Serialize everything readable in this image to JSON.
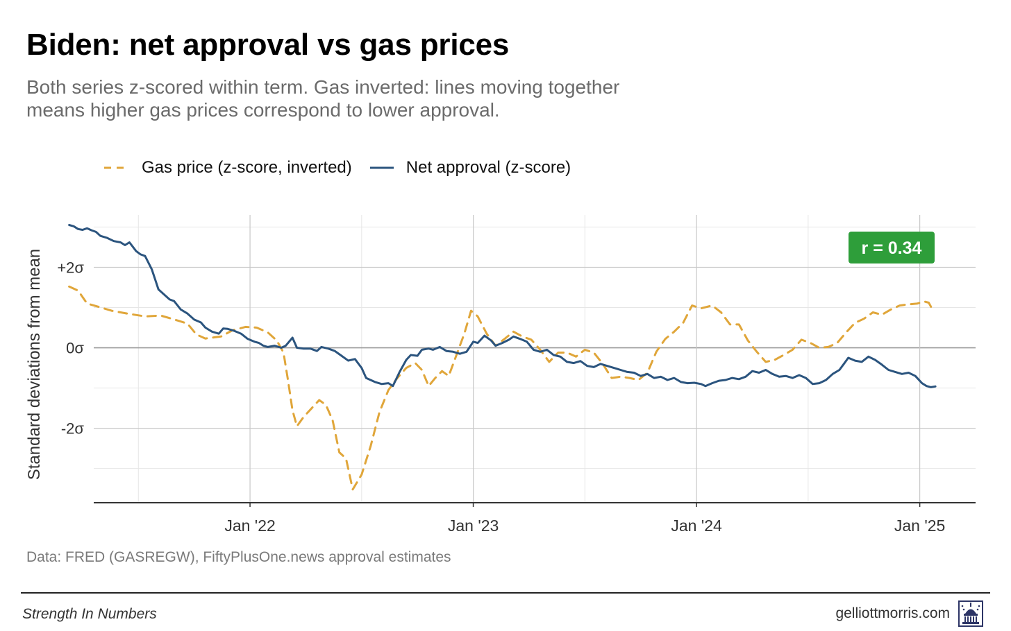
{
  "title": "Biden: net approval vs gas prices",
  "subtitle": "Both series z-scored within term. Gas inverted: lines moving together means higher gas prices correspond to lower approval.",
  "legend": {
    "gas": "Gas price (z-score, inverted)",
    "approval": "Net approval (z-score)"
  },
  "source": "Data: FRED (GASREGW), FiftyPlusOne.news approval estimates",
  "footer": {
    "brand": "Strength In Numbers",
    "site": "gelliottmorris.com",
    "logo_icon": "capitol-dome-icon"
  },
  "colors": {
    "gas": "#E0A63A",
    "approval": "#2B547E",
    "badge": "#2E9E3A",
    "grid": "#e6e6e6",
    "major_grid": "#c8c8c8",
    "zero_line": "#9a9a9a",
    "axis": "#333333"
  },
  "chart_data": {
    "type": "line",
    "title": "Biden: net approval vs gas prices",
    "xlabel": "",
    "ylabel": "Standard deviations from mean",
    "x_unit": "years",
    "xlim": [
      2021.3,
      2025.25
    ],
    "ylim": [
      -3.85,
      3.3
    ],
    "x_ticks": [
      {
        "value": 2022.0,
        "label": "Jan '22"
      },
      {
        "value": 2023.0,
        "label": "Jan '23"
      },
      {
        "value": 2024.0,
        "label": "Jan '24"
      },
      {
        "value": 2025.0,
        "label": "Jan '25"
      }
    ],
    "x_minor_ticks": [
      2021.5,
      2022.5,
      2023.5,
      2024.5
    ],
    "y_ticks": [
      {
        "value": 2,
        "label": "+2σ"
      },
      {
        "value": 0,
        "label": "0σ"
      },
      {
        "value": -2,
        "label": "-2σ"
      }
    ],
    "y_minor_ticks": [
      3,
      1,
      -1,
      -3
    ],
    "annotation": "r = 0.34",
    "annotation_position": "top-right",
    "series": [
      {
        "name": "Gas price (z-score, inverted)",
        "style": "dashed",
        "points": [
          [
            2021.19,
            1.52
          ],
          [
            2021.23,
            1.42
          ],
          [
            2021.27,
            1.1
          ],
          [
            2021.32,
            1.02
          ],
          [
            2021.38,
            0.92
          ],
          [
            2021.45,
            0.85
          ],
          [
            2021.53,
            0.78
          ],
          [
            2021.6,
            0.8
          ],
          [
            2021.65,
            0.72
          ],
          [
            2021.72,
            0.6
          ],
          [
            2021.76,
            0.33
          ],
          [
            2021.8,
            0.23
          ],
          [
            2021.87,
            0.28
          ],
          [
            2021.92,
            0.43
          ],
          [
            2021.98,
            0.52
          ],
          [
            2022.03,
            0.5
          ],
          [
            2022.08,
            0.38
          ],
          [
            2022.12,
            0.18
          ],
          [
            2022.15,
            -0.12
          ],
          [
            2022.17,
            -0.8
          ],
          [
            2022.19,
            -1.55
          ],
          [
            2022.21,
            -1.95
          ],
          [
            2022.24,
            -1.72
          ],
          [
            2022.28,
            -1.48
          ],
          [
            2022.31,
            -1.3
          ],
          [
            2022.34,
            -1.42
          ],
          [
            2022.37,
            -1.8
          ],
          [
            2022.4,
            -2.6
          ],
          [
            2022.43,
            -2.75
          ],
          [
            2022.46,
            -3.52
          ],
          [
            2022.5,
            -3.15
          ],
          [
            2022.54,
            -2.45
          ],
          [
            2022.58,
            -1.6
          ],
          [
            2022.62,
            -1.05
          ],
          [
            2022.66,
            -0.75
          ],
          [
            2022.7,
            -0.5
          ],
          [
            2022.74,
            -0.38
          ],
          [
            2022.77,
            -0.55
          ],
          [
            2022.8,
            -0.95
          ],
          [
            2022.83,
            -0.75
          ],
          [
            2022.86,
            -0.58
          ],
          [
            2022.89,
            -0.7
          ],
          [
            2022.92,
            -0.25
          ],
          [
            2022.96,
            0.35
          ],
          [
            2022.99,
            0.92
          ],
          [
            2023.02,
            0.78
          ],
          [
            2023.06,
            0.35
          ],
          [
            2023.1,
            0.05
          ],
          [
            2023.14,
            0.22
          ],
          [
            2023.18,
            0.4
          ],
          [
            2023.22,
            0.28
          ],
          [
            2023.26,
            0.2
          ],
          [
            2023.3,
            -0.05
          ],
          [
            2023.34,
            -0.35
          ],
          [
            2023.38,
            -0.12
          ],
          [
            2023.42,
            -0.12
          ],
          [
            2023.46,
            -0.22
          ],
          [
            2023.5,
            -0.05
          ],
          [
            2023.54,
            -0.12
          ],
          [
            2023.58,
            -0.4
          ],
          [
            2023.62,
            -0.75
          ],
          [
            2023.66,
            -0.72
          ],
          [
            2023.7,
            -0.75
          ],
          [
            2023.74,
            -0.8
          ],
          [
            2023.78,
            -0.62
          ],
          [
            2023.82,
            -0.1
          ],
          [
            2023.86,
            0.22
          ],
          [
            2023.9,
            0.4
          ],
          [
            2023.94,
            0.62
          ],
          [
            2023.98,
            1.05
          ],
          [
            2024.02,
            0.98
          ],
          [
            2024.07,
            1.05
          ],
          [
            2024.11,
            0.88
          ],
          [
            2024.15,
            0.58
          ],
          [
            2024.19,
            0.58
          ],
          [
            2024.23,
            0.18
          ],
          [
            2024.27,
            -0.1
          ],
          [
            2024.31,
            -0.35
          ],
          [
            2024.35,
            -0.3
          ],
          [
            2024.39,
            -0.18
          ],
          [
            2024.43,
            -0.05
          ],
          [
            2024.47,
            0.2
          ],
          [
            2024.51,
            0.12
          ],
          [
            2024.55,
            0.0
          ],
          [
            2024.59,
            0.02
          ],
          [
            2024.63,
            0.12
          ],
          [
            2024.67,
            0.38
          ],
          [
            2024.71,
            0.62
          ],
          [
            2024.75,
            0.72
          ],
          [
            2024.79,
            0.88
          ],
          [
            2024.83,
            0.82
          ],
          [
            2024.87,
            0.95
          ],
          [
            2024.91,
            1.05
          ],
          [
            2024.95,
            1.08
          ],
          [
            2024.99,
            1.1
          ],
          [
            2025.02,
            1.15
          ],
          [
            2025.04,
            1.12
          ],
          [
            2025.06,
            0.92
          ]
        ]
      },
      {
        "name": "Net approval (z-score)",
        "style": "solid",
        "points": [
          [
            2021.19,
            3.05
          ],
          [
            2021.21,
            3.02
          ],
          [
            2021.23,
            2.95
          ],
          [
            2021.25,
            2.93
          ],
          [
            2021.27,
            2.97
          ],
          [
            2021.29,
            2.92
          ],
          [
            2021.31,
            2.88
          ],
          [
            2021.33,
            2.78
          ],
          [
            2021.36,
            2.73
          ],
          [
            2021.39,
            2.65
          ],
          [
            2021.42,
            2.62
          ],
          [
            2021.44,
            2.55
          ],
          [
            2021.46,
            2.62
          ],
          [
            2021.49,
            2.4
          ],
          [
            2021.51,
            2.32
          ],
          [
            2021.53,
            2.28
          ],
          [
            2021.56,
            1.95
          ],
          [
            2021.59,
            1.45
          ],
          [
            2021.62,
            1.3
          ],
          [
            2021.64,
            1.2
          ],
          [
            2021.66,
            1.16
          ],
          [
            2021.69,
            0.95
          ],
          [
            2021.72,
            0.85
          ],
          [
            2021.75,
            0.7
          ],
          [
            2021.78,
            0.63
          ],
          [
            2021.8,
            0.5
          ],
          [
            2021.83,
            0.4
          ],
          [
            2021.86,
            0.35
          ],
          [
            2021.88,
            0.48
          ],
          [
            2021.9,
            0.47
          ],
          [
            2021.93,
            0.42
          ],
          [
            2021.96,
            0.35
          ],
          [
            2021.99,
            0.22
          ],
          [
            2022.02,
            0.15
          ],
          [
            2022.04,
            0.12
          ],
          [
            2022.06,
            0.05
          ],
          [
            2022.08,
            0.02
          ],
          [
            2022.11,
            0.05
          ],
          [
            2022.14,
            0.0
          ],
          [
            2022.16,
            0.05
          ],
          [
            2022.19,
            0.25
          ],
          [
            2022.21,
            0.0
          ],
          [
            2022.24,
            -0.02
          ],
          [
            2022.27,
            -0.02
          ],
          [
            2022.3,
            -0.08
          ],
          [
            2022.32,
            0.02
          ],
          [
            2022.35,
            -0.02
          ],
          [
            2022.38,
            -0.08
          ],
          [
            2022.41,
            -0.2
          ],
          [
            2022.44,
            -0.32
          ],
          [
            2022.47,
            -0.28
          ],
          [
            2022.5,
            -0.5
          ],
          [
            2022.52,
            -0.75
          ],
          [
            2022.56,
            -0.85
          ],
          [
            2022.59,
            -0.9
          ],
          [
            2022.62,
            -0.88
          ],
          [
            2022.64,
            -0.95
          ],
          [
            2022.67,
            -0.6
          ],
          [
            2022.7,
            -0.3
          ],
          [
            2022.72,
            -0.18
          ],
          [
            2022.75,
            -0.2
          ],
          [
            2022.77,
            -0.05
          ],
          [
            2022.8,
            -0.02
          ],
          [
            2022.82,
            -0.05
          ],
          [
            2022.85,
            0.02
          ],
          [
            2022.88,
            -0.08
          ],
          [
            2022.91,
            -0.1
          ],
          [
            2022.94,
            -0.15
          ],
          [
            2022.97,
            -0.1
          ],
          [
            2023.0,
            0.15
          ],
          [
            2023.02,
            0.12
          ],
          [
            2023.05,
            0.3
          ],
          [
            2023.08,
            0.18
          ],
          [
            2023.1,
            0.05
          ],
          [
            2023.13,
            0.12
          ],
          [
            2023.16,
            0.2
          ],
          [
            2023.18,
            0.28
          ],
          [
            2023.21,
            0.22
          ],
          [
            2023.24,
            0.15
          ],
          [
            2023.27,
            -0.05
          ],
          [
            2023.3,
            -0.1
          ],
          [
            2023.33,
            -0.05
          ],
          [
            2023.36,
            -0.18
          ],
          [
            2023.39,
            -0.22
          ],
          [
            2023.42,
            -0.35
          ],
          [
            2023.45,
            -0.38
          ],
          [
            2023.48,
            -0.33
          ],
          [
            2023.51,
            -0.45
          ],
          [
            2023.54,
            -0.48
          ],
          [
            2023.57,
            -0.4
          ],
          [
            2023.6,
            -0.45
          ],
          [
            2023.63,
            -0.5
          ],
          [
            2023.66,
            -0.55
          ],
          [
            2023.69,
            -0.6
          ],
          [
            2023.72,
            -0.62
          ],
          [
            2023.75,
            -0.7
          ],
          [
            2023.78,
            -0.65
          ],
          [
            2023.81,
            -0.75
          ],
          [
            2023.84,
            -0.72
          ],
          [
            2023.87,
            -0.8
          ],
          [
            2023.9,
            -0.75
          ],
          [
            2023.93,
            -0.85
          ],
          [
            2023.96,
            -0.88
          ],
          [
            2023.99,
            -0.87
          ],
          [
            2024.02,
            -0.9
          ],
          [
            2024.04,
            -0.95
          ],
          [
            2024.07,
            -0.88
          ],
          [
            2024.1,
            -0.82
          ],
          [
            2024.13,
            -0.8
          ],
          [
            2024.16,
            -0.75
          ],
          [
            2024.19,
            -0.78
          ],
          [
            2024.22,
            -0.72
          ],
          [
            2024.25,
            -0.58
          ],
          [
            2024.28,
            -0.62
          ],
          [
            2024.31,
            -0.55
          ],
          [
            2024.34,
            -0.65
          ],
          [
            2024.37,
            -0.72
          ],
          [
            2024.4,
            -0.7
          ],
          [
            2024.43,
            -0.75
          ],
          [
            2024.46,
            -0.68
          ],
          [
            2024.49,
            -0.75
          ],
          [
            2024.52,
            -0.9
          ],
          [
            2024.55,
            -0.88
          ],
          [
            2024.58,
            -0.8
          ],
          [
            2024.61,
            -0.65
          ],
          [
            2024.64,
            -0.55
          ],
          [
            2024.66,
            -0.4
          ],
          [
            2024.68,
            -0.25
          ],
          [
            2024.71,
            -0.32
          ],
          [
            2024.74,
            -0.35
          ],
          [
            2024.77,
            -0.22
          ],
          [
            2024.8,
            -0.3
          ],
          [
            2024.83,
            -0.42
          ],
          [
            2024.86,
            -0.55
          ],
          [
            2024.89,
            -0.6
          ],
          [
            2024.92,
            -0.65
          ],
          [
            2024.95,
            -0.62
          ],
          [
            2024.98,
            -0.7
          ],
          [
            2025.01,
            -0.88
          ],
          [
            2025.03,
            -0.95
          ],
          [
            2025.05,
            -0.98
          ],
          [
            2025.07,
            -0.96
          ]
        ]
      }
    ]
  }
}
